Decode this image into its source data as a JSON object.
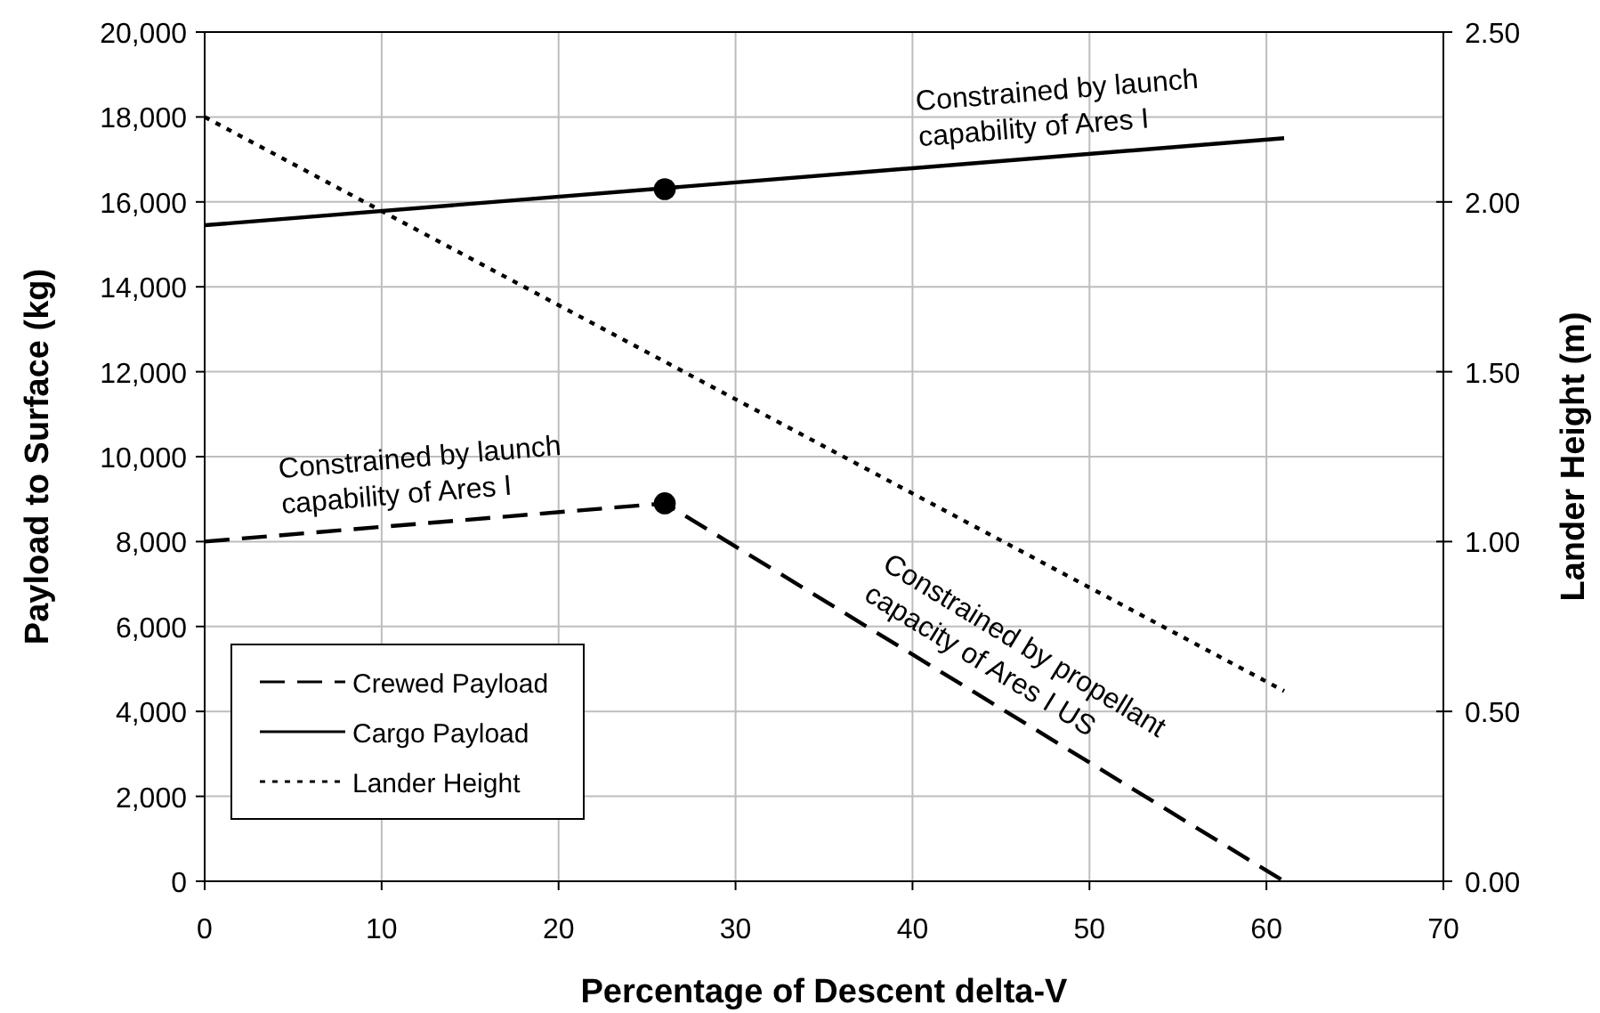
{
  "chart_data": {
    "type": "line",
    "xlabel": "Percentage of Descent delta-V",
    "ylabel": "Payload to Surface (kg)",
    "y2label": "Lander Height (m)",
    "xlim": [
      0,
      70
    ],
    "xticks": [
      0,
      10,
      20,
      30,
      40,
      50,
      60,
      70
    ],
    "ylim": [
      0,
      20000
    ],
    "yticks": [
      {
        "value": 0,
        "label": "0"
      },
      {
        "value": 2000,
        "label": "2,000"
      },
      {
        "value": 4000,
        "label": "4,000"
      },
      {
        "value": 6000,
        "label": "6,000"
      },
      {
        "value": 8000,
        "label": "8,000"
      },
      {
        "value": 10000,
        "label": "10,000"
      },
      {
        "value": 12000,
        "label": "12,000"
      },
      {
        "value": 14000,
        "label": "14,000"
      },
      {
        "value": 16000,
        "label": "16,000"
      },
      {
        "value": 18000,
        "label": "18,000"
      },
      {
        "value": 20000,
        "label": "20,000"
      }
    ],
    "y2lim": [
      0,
      2.5
    ],
    "y2ticks": [
      {
        "value": 0,
        "label": "0.00"
      },
      {
        "value": 0.5,
        "label": "0.50"
      },
      {
        "value": 1,
        "label": "1.00"
      },
      {
        "value": 1.5,
        "label": "1.50"
      },
      {
        "value": 2,
        "label": "2.00"
      },
      {
        "value": 2.5,
        "label": "2.50"
      }
    ],
    "grid": true,
    "legend": "bottom left",
    "marker": "none",
    "series": [
      {
        "name": "Crewed Payload",
        "color": "#000000",
        "line_style": "dashed",
        "x": [
          0,
          26,
          61
        ],
        "values": [
          8000,
          8900,
          0
        ]
      },
      {
        "name": "Cargo Payload",
        "color": "#000000",
        "line_style": "solid",
        "x": [
          0,
          61
        ],
        "values": [
          15450,
          17500
        ]
      },
      {
        "name": "Lander Height",
        "color": "#000000",
        "line_style": "dotted",
        "axis": "y2",
        "x": [
          0,
          61
        ],
        "values": [
          2.25,
          0.56
        ]
      },
      {
        "type": "scatter",
        "color": "#000000",
        "marker": "circle",
        "x": [
          26,
          26
        ],
        "values": [
          16300,
          8900
        ]
      }
    ],
    "annotations": [
      {
        "text": "Constrained by launch capability of Ares I",
        "x": 48,
        "y": 17063
      },
      {
        "text": "Constrained by launch capability of Ares I",
        "x": 12,
        "y": 8415
      },
      {
        "text": "Constrained by propellant capacity of Ares I US",
        "x": 43,
        "y": 4577
      }
    ]
  }
}
